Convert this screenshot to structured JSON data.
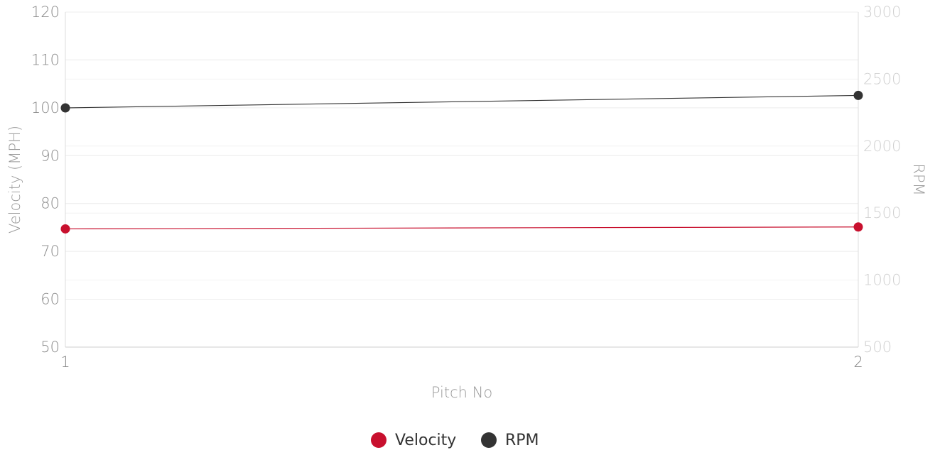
{
  "chart_data": {
    "type": "line",
    "x": [
      1,
      2
    ],
    "x_ticks": [
      "1",
      "2"
    ],
    "xlabel": "Pitch No",
    "ylabel": "Velocity (MPH)",
    "y2label": "RPM",
    "ylim": [
      50,
      120
    ],
    "y_ticks": [
      50,
      60,
      70,
      80,
      90,
      100,
      110,
      120
    ],
    "y2lim": [
      500,
      3000
    ],
    "y2_ticks": [
      500,
      1000,
      1500,
      2000,
      2500,
      3000
    ],
    "grid": true,
    "legend_position": "bottom-center",
    "series": [
      {
        "name": "Velocity",
        "axis": "left",
        "color": "#c8102e",
        "values": [
          74.7,
          75.1
        ]
      },
      {
        "name": "RPM",
        "axis": "right",
        "color": "#333333",
        "values": [
          2285,
          2378
        ]
      }
    ]
  }
}
